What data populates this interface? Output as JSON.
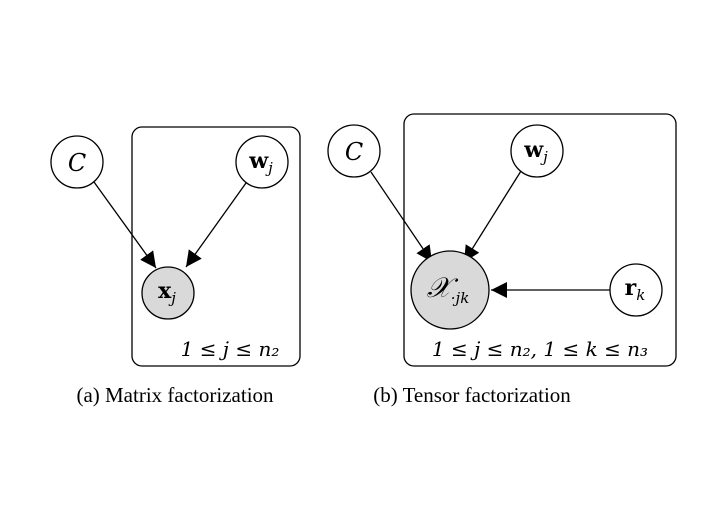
{
  "panel_a": {
    "caption": "(a) Matrix factorization",
    "nodes": {
      "c": {
        "label": "C",
        "observed": false
      },
      "w": {
        "label_main": "w",
        "label_sub": "j",
        "observed": false
      },
      "x": {
        "label_main": "x",
        "label_sub": "j",
        "observed": true
      }
    },
    "plate_label": "1 ≤ j ≤ n₂"
  },
  "panel_b": {
    "caption": "(b) Tensor factorization",
    "nodes": {
      "c": {
        "label": "C",
        "observed": false
      },
      "w": {
        "label_main": "w",
        "label_sub": "j",
        "observed": false
      },
      "x": {
        "label_main": "𝒳",
        "label_sub": "·jk",
        "observed": true
      },
      "r": {
        "label_main": "r",
        "label_sub": "k",
        "observed": false
      }
    },
    "plate_label": "1 ≤ j ≤ n₂, 1 ≤ k ≤ n₃"
  },
  "colors": {
    "observed_fill": "#d9d9d9",
    "latent_fill": "#ffffff",
    "stroke": "#000000"
  }
}
